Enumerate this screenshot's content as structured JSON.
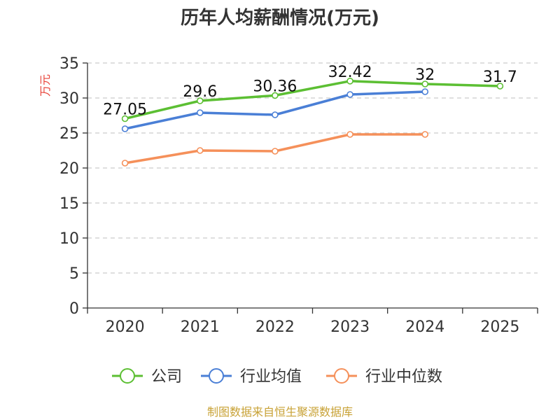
{
  "chart_data": {
    "type": "line",
    "title": "历年人均薪酬情况(万元)",
    "ylabel": "万元",
    "xlabel": "",
    "ylim": [
      0,
      35
    ],
    "yticks": [
      0,
      5,
      10,
      15,
      20,
      25,
      30,
      35
    ],
    "categories": [
      "2020",
      "2021",
      "2022",
      "2023",
      "2024",
      "2025"
    ],
    "grid": true,
    "legend_position": "bottom",
    "series": [
      {
        "name": "公司",
        "color": "#5cbf33",
        "values": [
          27.05,
          29.6,
          30.36,
          32.42,
          32,
          31.7
        ],
        "labels": [
          "27.05",
          "29.6",
          "30.36",
          "32.42",
          "32",
          "31.7"
        ]
      },
      {
        "name": "行业均值",
        "color": "#4a7fd6",
        "values": [
          25.6,
          27.9,
          27.6,
          30.5,
          30.9,
          null
        ]
      },
      {
        "name": "行业中位数",
        "color": "#f5905a",
        "values": [
          20.7,
          22.5,
          22.4,
          24.8,
          24.8,
          null
        ]
      }
    ]
  },
  "source_text": "制图数据来自恒生聚源数据库"
}
